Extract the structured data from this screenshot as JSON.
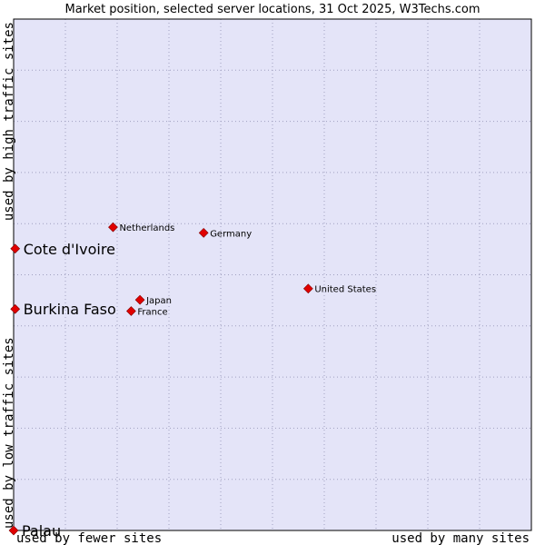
{
  "chart_data": {
    "type": "scatter",
    "title": "Market position, selected server locations, 31 Oct 2025, W3Techs.com",
    "xlabel_left": "used by fewer sites",
    "xlabel_right": "used by many sites",
    "ylabel_bottom": "used by low traffic sites",
    "ylabel_top": "used by high traffic sites",
    "xlim": [
      0,
      100
    ],
    "ylim": [
      0,
      100
    ],
    "grid": true,
    "colors": {
      "plot_bg": "#e4e4f8",
      "grid": "#a0a0c0",
      "border": "#000000",
      "marker": "#e00000",
      "marker_stroke": "#800000"
    },
    "points": [
      {
        "label": "Netherlands",
        "x": 19.2,
        "y": 59.3,
        "emphasis": false
      },
      {
        "label": "Germany",
        "x": 36.7,
        "y": 58.2,
        "emphasis": false
      },
      {
        "label": "Cote d'Ivoire",
        "x": 0.3,
        "y": 55.1,
        "emphasis": true
      },
      {
        "label": "United States",
        "x": 56.9,
        "y": 47.3,
        "emphasis": false
      },
      {
        "label": "Japan",
        "x": 24.4,
        "y": 45.1,
        "emphasis": false
      },
      {
        "label": "Burkina Faso",
        "x": 0.3,
        "y": 43.3,
        "emphasis": true
      },
      {
        "label": "France",
        "x": 22.7,
        "y": 42.9,
        "emphasis": false
      },
      {
        "label": "Palau",
        "x": 0,
        "y": 0,
        "emphasis": true
      }
    ]
  }
}
